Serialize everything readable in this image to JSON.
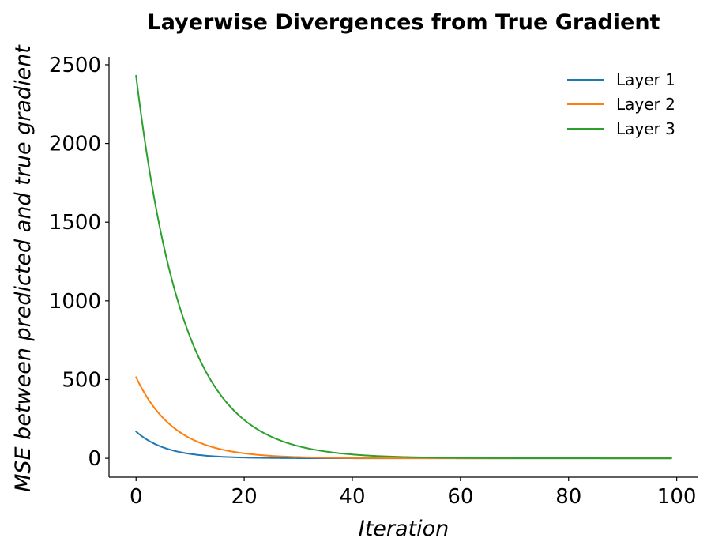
{
  "chart_data": {
    "type": "line",
    "title": "Layerwise Divergences from True Gradient",
    "xlabel": "Iteration",
    "ylabel": "MSE between predicted and true gradient",
    "xlim": [
      -5,
      104
    ],
    "ylim": [
      -120,
      2550
    ],
    "xticks": [
      0,
      20,
      40,
      60,
      80,
      100
    ],
    "yticks": [
      0,
      500,
      1000,
      1500,
      2000,
      2500
    ],
    "xtick_labels": [
      "0",
      "20",
      "40",
      "60",
      "80",
      "100"
    ],
    "ytick_labels": [
      "0",
      "500",
      "1000",
      "1500",
      "2000",
      "2500"
    ],
    "grid": false,
    "legend_position": "top-right",
    "series": [
      {
        "name": "Layer 1",
        "color": "#1f77b4",
        "x_range": [
          0,
          99
        ],
        "start_value": 170,
        "decay_rate": 0.18
      },
      {
        "name": "Layer 2",
        "color": "#ff7f0e",
        "x_range": [
          0,
          99
        ],
        "start_value": 515,
        "decay_rate": 0.14
      },
      {
        "name": "Layer 3",
        "color": "#2ca02c",
        "x_range": [
          0,
          99
        ],
        "start_value": 2430,
        "decay_rate": 0.115
      }
    ]
  }
}
